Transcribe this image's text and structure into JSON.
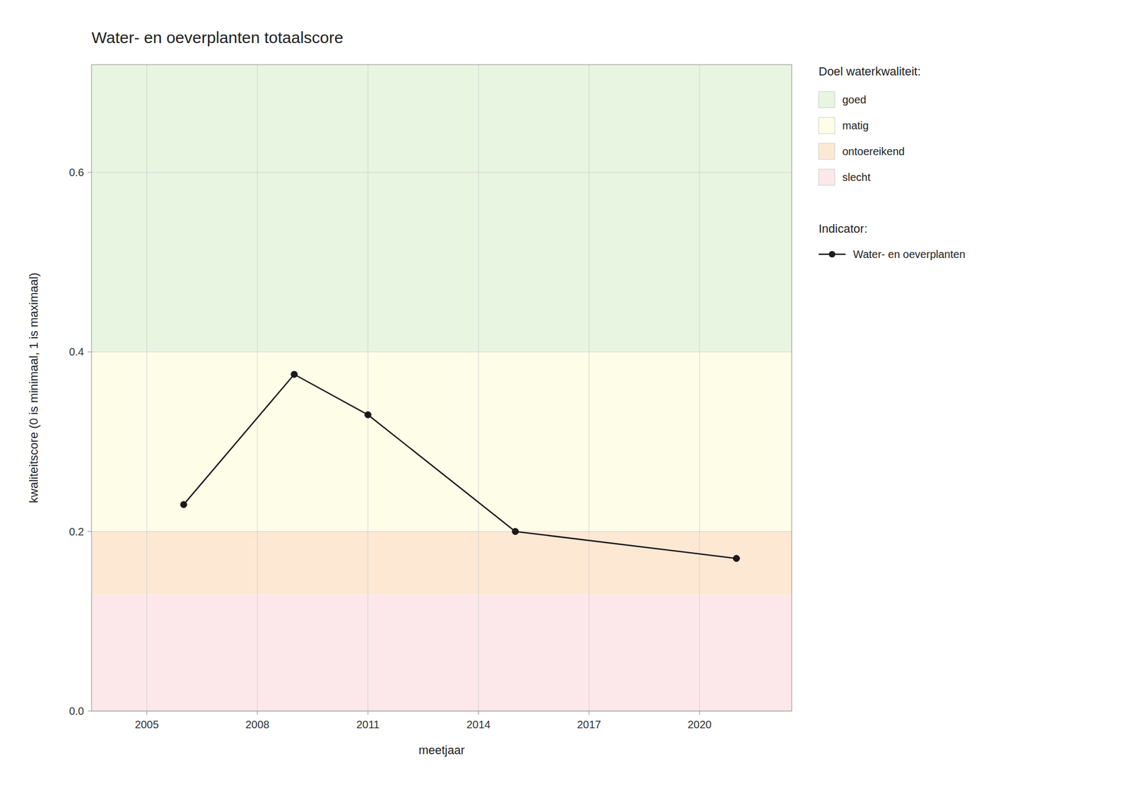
{
  "chart_data": {
    "type": "line",
    "title": "Water- en oeverplanten totaalscore",
    "x_label": "meetjaar",
    "y_label": "kwaliteitscore (0 is minimaal, 1 is maximaal)",
    "x": [
      2006,
      2009,
      2011,
      2015,
      2021
    ],
    "series": [
      {
        "name": "Water- en oeverplanten",
        "color": "#1a1a1a",
        "marker": "circle",
        "values": [
          0.23,
          0.375,
          0.33,
          0.2,
          0.17
        ]
      }
    ],
    "series_title": "Indicator:",
    "xlim": [
      2003.5,
      2022.5
    ],
    "xticks": [
      2005,
      2008,
      2011,
      2014,
      2017,
      2020
    ],
    "ylim": [
      0,
      0.72
    ],
    "yticks": [
      {
        "value": 0.0,
        "label": "0.0"
      },
      0.2,
      0.4,
      0.6
    ],
    "grid": true,
    "zones": {
      "title": "Doel waterkwaliteit:",
      "bands": [
        {
          "ymin": 0.0,
          "ymax": 0.13,
          "color": "#fce8ea",
          "label": "slecht"
        },
        {
          "ymin": 0.13,
          "ymax": 0.2,
          "color": "#fde8d4",
          "label": "ontoereikend"
        },
        {
          "ymin": 0.2,
          "ymax": 0.4,
          "color": "#fefee8",
          "label": "matig"
        },
        {
          "ymin": 0.4,
          "ymax": 0.72,
          "color": "#e8f5e0",
          "label": "goed"
        }
      ]
    }
  }
}
